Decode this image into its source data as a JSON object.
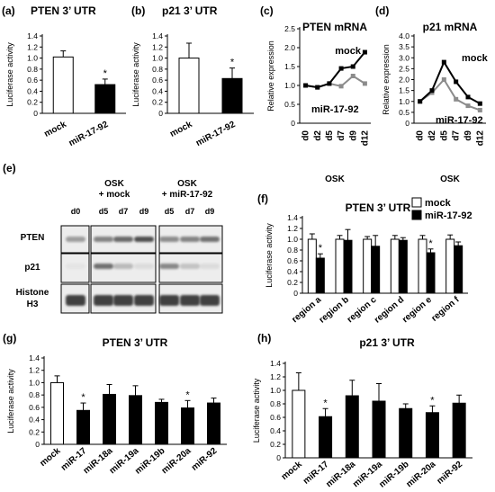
{
  "panels": [
    {
      "id": "a",
      "type": "bar",
      "label": "(a)",
      "title": "PTEN  3’ UTR",
      "ylabel": "Luciferase activity",
      "ylim": [
        0,
        1.4
      ],
      "step": 0.2,
      "ticks": [
        "0",
        "0.2",
        "0.4",
        "0.6",
        "0.8",
        "1.0",
        "1.2",
        "1.4"
      ],
      "categories": [
        "mock",
        "miR-17-92"
      ],
      "values": [
        1.02,
        0.52
      ],
      "errors": [
        0.11,
        0.1
      ],
      "fills": [
        "#ffffff",
        "#000000"
      ],
      "stars": [
        false,
        true
      ]
    },
    {
      "id": "b",
      "type": "bar",
      "label": "(b)",
      "title": "p21  3’ UTR",
      "ylabel": "Luciferase activity",
      "ylim": [
        0,
        1.4
      ],
      "step": 0.2,
      "ticks": [
        "0",
        "0.2",
        "0.4",
        "0.6",
        "0.8",
        "1.0",
        "1.2",
        "1.4"
      ],
      "categories": [
        "mock",
        "miR-17-92"
      ],
      "values": [
        1.0,
        0.63
      ],
      "errors": [
        0.27,
        0.19
      ],
      "fills": [
        "#ffffff",
        "#000000"
      ],
      "stars": [
        false,
        true
      ]
    },
    {
      "id": "c",
      "type": "line",
      "label": "(c)",
      "title": "PTEN mRNA",
      "ylabel": "Relative expression",
      "ylim": [
        0,
        2.5
      ],
      "step": 0.5,
      "ticks": [
        "0",
        "0.5",
        "1.0",
        "1.5",
        "2.0",
        "2.5"
      ],
      "x": [
        "d0",
        "d2",
        "d5",
        "d7",
        "d9",
        "d12"
      ],
      "xlabel": "OSK",
      "series": [
        {
          "name": "mock",
          "values": [
            1.0,
            0.95,
            1.05,
            1.45,
            1.5,
            1.88
          ],
          "color": "#000000"
        },
        {
          "name": "miR-17-92",
          "values": [
            1.0,
            0.95,
            1.05,
            0.98,
            1.25,
            1.05
          ],
          "color": "#8c8c8c"
        }
      ]
    },
    {
      "id": "d",
      "type": "line",
      "label": "(d)",
      "title": "p21 mRNA",
      "ylabel": "Relative expression",
      "ylim": [
        0,
        4.0
      ],
      "step": 0.5,
      "ticks": [
        "0",
        "0.5",
        "1.0",
        "1.5",
        "2.0",
        "2.5",
        "3.0",
        "3.5",
        "4.0"
      ],
      "x": [
        "d0",
        "d2",
        "d5",
        "d7",
        "d9",
        "d12"
      ],
      "xlabel": "OSK",
      "series": [
        {
          "name": "mock",
          "values": [
            1.0,
            1.5,
            2.8,
            1.9,
            1.2,
            0.9
          ],
          "color": "#000000"
        },
        {
          "name": "miR-17-92",
          "values": [
            1.0,
            1.4,
            2.0,
            1.1,
            0.8,
            0.6
          ],
          "color": "#8c8c8c"
        }
      ]
    },
    {
      "id": "f",
      "type": "grouped_bar",
      "label": "(f)",
      "title": "PTEN  3’ UTR",
      "ylabel": "Luciferase activity",
      "ylim": [
        0,
        1.4
      ],
      "step": 0.2,
      "ticks": [
        "0",
        "0.2",
        "0.4",
        "0.6",
        "0.8",
        "1.0",
        "1.2",
        "1.4"
      ],
      "categories": [
        "region a",
        "region b",
        "region c",
        "region d",
        "region e",
        "region f"
      ],
      "series": [
        {
          "name": "mock",
          "values": [
            1.0,
            1.0,
            1.0,
            1.0,
            1.0,
            1.0
          ],
          "errors": [
            0.1,
            0.07,
            0.05,
            0.07,
            0.07,
            0.08
          ],
          "fill": "#ffffff"
        },
        {
          "name": "miR-17-92",
          "values": [
            0.65,
            0.98,
            0.87,
            0.98,
            0.75,
            0.88
          ],
          "errors": [
            0.08,
            0.2,
            0.2,
            0.05,
            0.07,
            0.07
          ],
          "fill": "#000000"
        }
      ],
      "stars": [
        0,
        4
      ]
    },
    {
      "id": "g",
      "type": "bar",
      "label": "(g)",
      "title": "PTEN 3’ UTR",
      "ylabel": "Luciferase activity",
      "ylim": [
        0,
        1.4
      ],
      "step": 0.2,
      "ticks": [
        "0",
        "0.2",
        "0.4",
        "0.6",
        "0.8",
        "1.0",
        "1.2",
        "1.4"
      ],
      "categories": [
        "mock",
        "miR-17",
        "miR-18a",
        "miR-19a",
        "miR-19b",
        "miR-20a",
        "miR-92"
      ],
      "values": [
        1.0,
        0.55,
        0.81,
        0.79,
        0.68,
        0.59,
        0.67
      ],
      "errors": [
        0.11,
        0.12,
        0.16,
        0.16,
        0.05,
        0.12,
        0.08
      ],
      "fills": [
        "#ffffff",
        "#000000",
        "#000000",
        "#000000",
        "#000000",
        "#000000",
        "#000000"
      ],
      "stars": [
        false,
        true,
        false,
        false,
        false,
        true,
        false
      ]
    },
    {
      "id": "h",
      "type": "bar",
      "label": "(h)",
      "title": "p21 3’ UTR",
      "ylabel": "Luciferase activity",
      "ylim": [
        0,
        1.4
      ],
      "step": 0.2,
      "ticks": [
        "0",
        "0.2",
        "0.4",
        "0.6",
        "0.8",
        "1.0",
        "1.2",
        "1.4"
      ],
      "categories": [
        "mock",
        "miR-17",
        "miR-18a",
        "miR-19a",
        "miR-19b",
        "miR-20a",
        "miR-92"
      ],
      "values": [
        1.0,
        0.61,
        0.92,
        0.84,
        0.73,
        0.67,
        0.81
      ],
      "errors": [
        0.26,
        0.12,
        0.23,
        0.26,
        0.07,
        0.1,
        0.12
      ],
      "fills": [
        "#ffffff",
        "#000000",
        "#000000",
        "#000000",
        "#000000",
        "#000000",
        "#000000"
      ],
      "stars": [
        false,
        true,
        false,
        false,
        false,
        true,
        false
      ]
    }
  ],
  "chart_data": [
    {
      "panel": "a",
      "type": "bar",
      "title": "PTEN  3’ UTR",
      "ylabel": "Luciferase activity",
      "ylim": [
        0,
        1.4
      ],
      "categories": [
        "mock",
        "miR-17-92"
      ],
      "values": [
        1.02,
        0.52
      ]
    },
    {
      "panel": "b",
      "type": "bar",
      "title": "p21  3’ UTR",
      "ylabel": "Luciferase activity",
      "ylim": [
        0,
        1.4
      ],
      "categories": [
        "mock",
        "miR-17-92"
      ],
      "values": [
        1.0,
        0.63
      ]
    },
    {
      "panel": "c",
      "type": "line",
      "title": "PTEN mRNA",
      "ylabel": "Relative expression",
      "xlabel": "OSK",
      "ylim": [
        0,
        2.5
      ],
      "x": [
        "d0",
        "d2",
        "d5",
        "d7",
        "d9",
        "d12"
      ],
      "series": [
        {
          "name": "mock",
          "values": [
            1.0,
            0.95,
            1.05,
            1.45,
            1.5,
            1.88
          ]
        },
        {
          "name": "miR-17-92",
          "values": [
            1.0,
            0.95,
            1.05,
            0.98,
            1.25,
            1.05
          ]
        }
      ]
    },
    {
      "panel": "d",
      "type": "line",
      "title": "p21 mRNA",
      "ylabel": "Relative expression",
      "xlabel": "OSK",
      "ylim": [
        0,
        4.0
      ],
      "x": [
        "d0",
        "d2",
        "d5",
        "d7",
        "d9",
        "d12"
      ],
      "series": [
        {
          "name": "mock",
          "values": [
            1.0,
            1.5,
            2.8,
            1.9,
            1.2,
            0.9
          ]
        },
        {
          "name": "miR-17-92",
          "values": [
            1.0,
            1.4,
            2.0,
            1.1,
            0.8,
            0.6
          ]
        }
      ]
    },
    {
      "panel": "f",
      "type": "bar",
      "title": "PTEN  3’ UTR",
      "ylabel": "Luciferase activity",
      "ylim": [
        0,
        1.4
      ],
      "categories": [
        "region a",
        "region b",
        "region c",
        "region d",
        "region e",
        "region f"
      ],
      "series": [
        {
          "name": "mock",
          "values": [
            1.0,
            1.0,
            1.0,
            1.0,
            1.0,
            1.0
          ]
        },
        {
          "name": "miR-17-92",
          "values": [
            0.65,
            0.98,
            0.87,
            0.98,
            0.75,
            0.88
          ]
        }
      ],
      "legend": "top-right"
    },
    {
      "panel": "g",
      "type": "bar",
      "title": "PTEN 3’ UTR",
      "ylabel": "Luciferase activity",
      "ylim": [
        0,
        1.4
      ],
      "categories": [
        "mock",
        "miR-17",
        "miR-18a",
        "miR-19a",
        "miR-19b",
        "miR-20a",
        "miR-92"
      ],
      "values": [
        1.0,
        0.55,
        0.81,
        0.79,
        0.68,
        0.59,
        0.67
      ]
    },
    {
      "panel": "h",
      "type": "bar",
      "title": "p21 3’ UTR",
      "ylabel": "Luciferase activity",
      "ylim": [
        0,
        1.4
      ],
      "categories": [
        "mock",
        "miR-17",
        "miR-18a",
        "miR-19a",
        "miR-19b",
        "miR-20a",
        "miR-92"
      ],
      "values": [
        1.0,
        0.61,
        0.92,
        0.84,
        0.73,
        0.67,
        0.81
      ]
    }
  ],
  "blot": {
    "label": "(e)",
    "groups": [
      "OSK",
      "+ mock",
      "OSK",
      "+ miR-17-92"
    ],
    "lanes": [
      "d0",
      "d5",
      "d7",
      "d9",
      "d5",
      "d7",
      "d9"
    ],
    "rows": [
      "PTEN",
      "p21",
      "Histone",
      "H3"
    ],
    "intensity": {
      "pten": [
        0.45,
        0.6,
        0.75,
        0.9,
        0.55,
        0.6,
        0.7
      ],
      "p21": [
        0.05,
        0.75,
        0.3,
        0.1,
        0.6,
        0.25,
        0.1
      ],
      "histone": [
        0.9,
        0.9,
        0.9,
        0.9,
        0.9,
        0.9,
        0.9
      ]
    }
  }
}
